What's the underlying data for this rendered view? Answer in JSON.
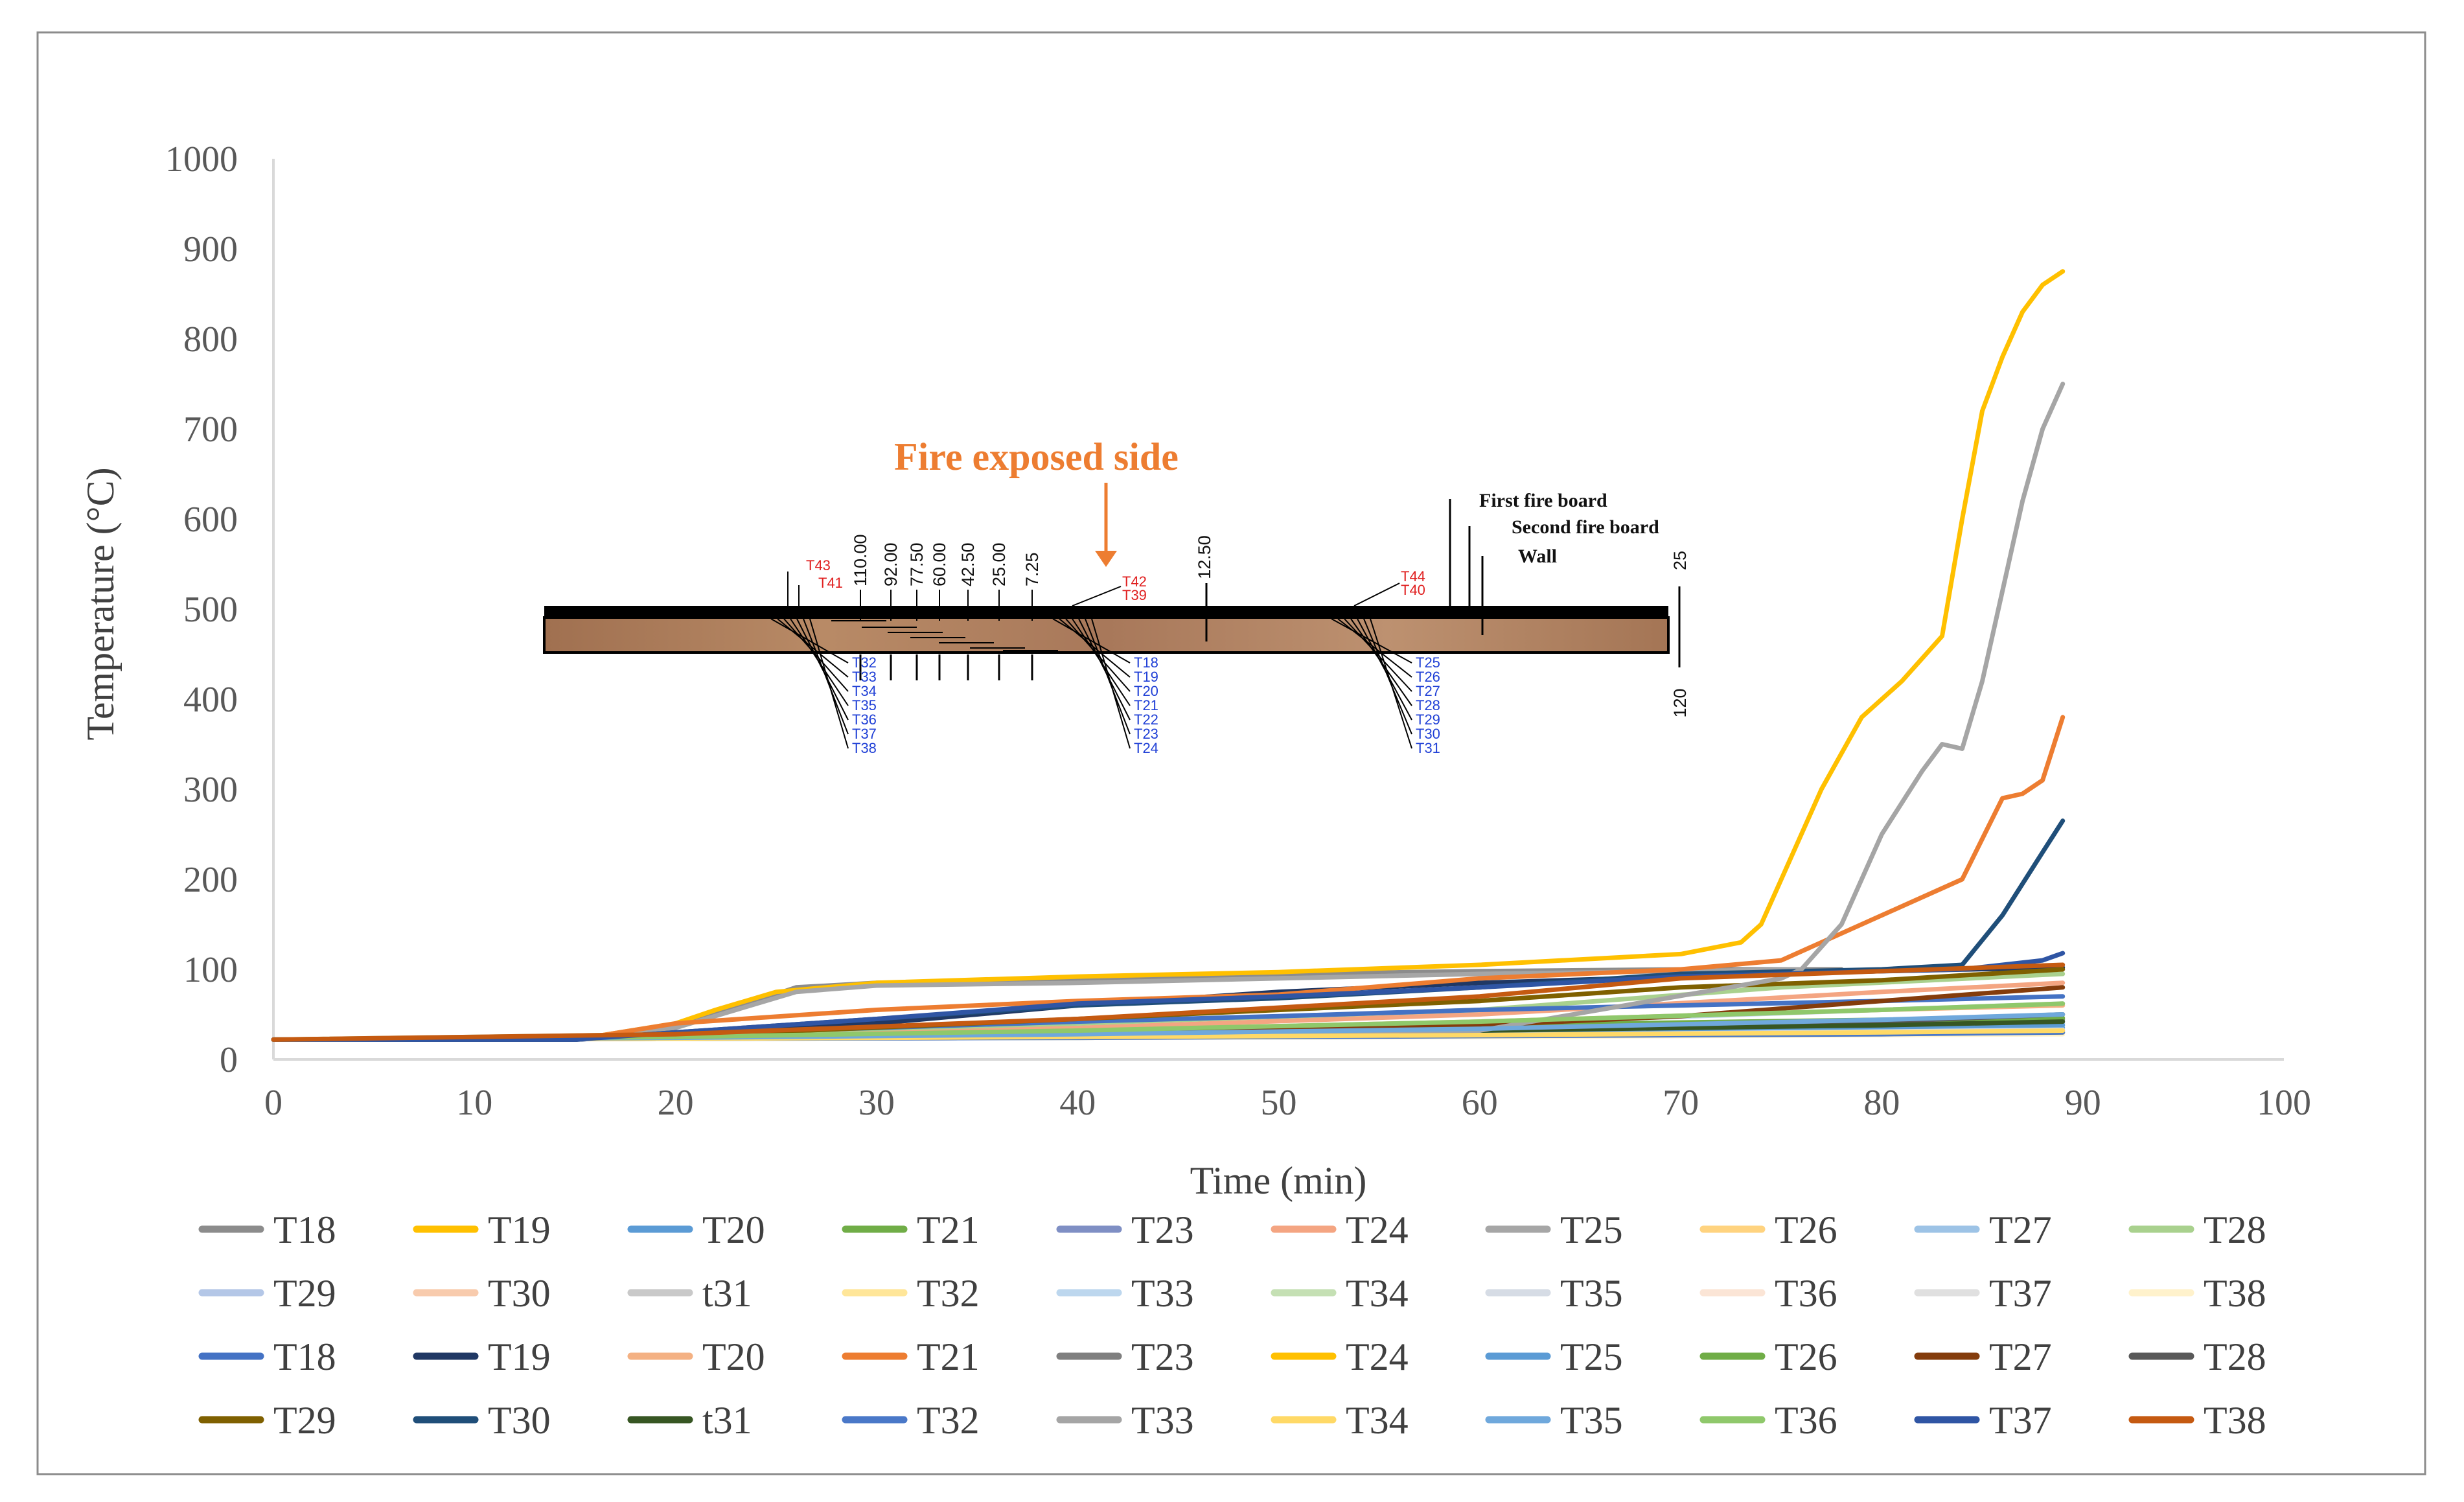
{
  "chart_data": {
    "type": "line",
    "title": "",
    "xlabel": "Time (min)",
    "ylabel": "Temperature (°C)",
    "xlim": [
      0,
      100
    ],
    "ylim": [
      0,
      1000
    ],
    "xticks": [
      0,
      10,
      20,
      30,
      40,
      50,
      60,
      70,
      80,
      90,
      100
    ],
    "yticks": [
      0,
      100,
      200,
      300,
      400,
      500,
      600,
      700,
      800,
      900,
      1000
    ],
    "grid": false,
    "legend_position": "bottom",
    "series": [
      {
        "name": "T18",
        "color": "#8c8c8c",
        "x": [
          0,
          15,
          20,
          26,
          30,
          40,
          50,
          60,
          70,
          76,
          78
        ],
        "y": [
          22,
          22,
          35,
          80,
          85,
          88,
          95,
          98,
          100,
          100,
          100
        ]
      },
      {
        "name": "T19",
        "color": "#ffc000",
        "x": [
          0,
          15,
          20,
          22,
          25,
          30,
          40,
          50,
          60,
          70,
          73,
          74,
          75,
          77,
          79,
          81,
          83,
          84,
          85,
          86,
          87,
          88,
          89
        ],
        "y": [
          22,
          22,
          40,
          55,
          75,
          85,
          92,
          97,
          105,
          117,
          130,
          150,
          200,
          300,
          380,
          420,
          470,
          600,
          720,
          780,
          830,
          860,
          875
        ]
      },
      {
        "name": "T20",
        "color": "#5b9bd5",
        "x": [
          0,
          20,
          40,
          60,
          80,
          89
        ],
        "y": [
          22,
          23,
          25,
          28,
          32,
          35
        ]
      },
      {
        "name": "T21",
        "color": "#70ad47",
        "x": [
          0,
          20,
          40,
          60,
          80,
          89
        ],
        "y": [
          22,
          25,
          32,
          38,
          44,
          46
        ]
      },
      {
        "name": "T23",
        "color": "#7f8fc4",
        "x": [
          0,
          20,
          40,
          60,
          80,
          89
        ],
        "y": [
          22,
          23,
          24,
          26,
          28,
          30
        ]
      },
      {
        "name": "T24",
        "color": "#f4a582",
        "x": [
          0,
          20,
          40,
          60,
          80,
          89
        ],
        "y": [
          22,
          26,
          35,
          50,
          75,
          85
        ]
      },
      {
        "name": "T25",
        "color": "#a6a6a6",
        "x": [
          0,
          15,
          20,
          26,
          30,
          40,
          50,
          60,
          70,
          76
        ],
        "y": [
          22,
          22,
          35,
          75,
          82,
          85,
          90,
          95,
          98,
          100
        ]
      },
      {
        "name": "T26",
        "color": "#ffd37f",
        "x": [
          0,
          20,
          40,
          60,
          80,
          89
        ],
        "y": [
          22,
          23,
          25,
          28,
          30,
          32
        ]
      },
      {
        "name": "T27",
        "color": "#9dc3e6",
        "x": [
          0,
          20,
          40,
          60,
          80,
          89
        ],
        "y": [
          22,
          24,
          28,
          33,
          38,
          40
        ]
      },
      {
        "name": "T28",
        "color": "#a9d18e",
        "x": [
          0,
          20,
          40,
          60,
          75,
          89
        ],
        "y": [
          22,
          28,
          40,
          55,
          80,
          95
        ]
      },
      {
        "name": "T29",
        "color": "#b4c7e7",
        "x": [
          0,
          20,
          40,
          60,
          80,
          89
        ],
        "y": [
          22,
          23,
          24,
          26,
          28,
          29
        ]
      },
      {
        "name": "T30",
        "color": "#f8cbad",
        "x": [
          0,
          20,
          40,
          60,
          80,
          89
        ],
        "y": [
          22,
          24,
          28,
          34,
          40,
          42
        ]
      },
      {
        "name": "t31",
        "color": "#c9c9c9",
        "x": [
          0,
          20,
          40,
          60,
          80,
          89
        ],
        "y": [
          22,
          23,
          25,
          28,
          31,
          33
        ]
      },
      {
        "name": "T32",
        "color": "#ffe699",
        "x": [
          0,
          20,
          40,
          60,
          80,
          89
        ],
        "y": [
          22,
          23,
          24,
          26,
          28,
          30
        ]
      },
      {
        "name": "T33",
        "color": "#bdd7ee",
        "x": [
          0,
          20,
          40,
          60,
          80,
          89
        ],
        "y": [
          22,
          24,
          30,
          40,
          55,
          62
        ]
      },
      {
        "name": "T34",
        "color": "#c5e0b4",
        "x": [
          0,
          20,
          40,
          60,
          80,
          89
        ],
        "y": [
          22,
          24,
          28,
          32,
          36,
          38
        ]
      },
      {
        "name": "T35",
        "color": "#d6dce5",
        "x": [
          0,
          20,
          40,
          60,
          80,
          89
        ],
        "y": [
          22,
          23,
          25,
          28,
          31,
          33
        ]
      },
      {
        "name": "T36",
        "color": "#fbe5d6",
        "x": [
          0,
          20,
          40,
          60,
          80,
          89
        ],
        "y": [
          22,
          23,
          25,
          27,
          30,
          32
        ]
      },
      {
        "name": "T37",
        "color": "#e0e0e0",
        "x": [
          0,
          20,
          40,
          60,
          80,
          89
        ],
        "y": [
          22,
          23,
          24,
          26,
          28,
          30
        ]
      },
      {
        "name": "T38",
        "color": "#fff2cc",
        "x": [
          0,
          20,
          40,
          60,
          80,
          89
        ],
        "y": [
          22,
          23,
          24,
          25,
          27,
          28
        ]
      },
      {
        "name": "T18",
        "color": "#4472c4",
        "x": [
          0,
          15,
          20,
          30,
          40,
          50,
          60,
          70,
          80,
          89
        ],
        "y": [
          22,
          22,
          28,
          35,
          42,
          48,
          55,
          60,
          65,
          70
        ]
      },
      {
        "name": "T19",
        "color": "#203864",
        "x": [
          0,
          15,
          20,
          30,
          40,
          50,
          60,
          70,
          80,
          89
        ],
        "y": [
          22,
          22,
          28,
          40,
          60,
          75,
          85,
          92,
          98,
          102
        ]
      },
      {
        "name": "T20",
        "color": "#f4b183",
        "x": [
          0,
          20,
          40,
          60,
          80,
          89
        ],
        "y": [
          22,
          25,
          32,
          42,
          55,
          60
        ]
      },
      {
        "name": "T21",
        "color": "#ed7d31",
        "x": [
          0,
          15,
          20,
          30,
          40,
          50,
          60,
          70,
          75,
          80,
          84,
          86,
          87,
          88,
          89
        ],
        "y": [
          22,
          22,
          40,
          55,
          65,
          72,
          90,
          100,
          110,
          160,
          200,
          290,
          295,
          310,
          380
        ]
      },
      {
        "name": "T23",
        "color": "#7f7f7f",
        "x": [
          0,
          20,
          40,
          60,
          80,
          89
        ],
        "y": [
          22,
          24,
          28,
          34,
          40,
          44
        ]
      },
      {
        "name": "T24",
        "color": "#ffc000",
        "x": [
          0,
          20,
          40,
          60,
          80,
          89
        ],
        "y": [
          22,
          23,
          25,
          27,
          29,
          30
        ]
      },
      {
        "name": "T25",
        "color": "#5b9bd5",
        "x": [
          0,
          20,
          40,
          60,
          80,
          89
        ],
        "y": [
          22,
          24,
          28,
          32,
          36,
          38
        ]
      },
      {
        "name": "T26",
        "color": "#70ad47",
        "x": [
          0,
          20,
          40,
          60,
          80,
          89
        ],
        "y": [
          22,
          25,
          30,
          36,
          42,
          46
        ]
      },
      {
        "name": "T27",
        "color": "#843c0c",
        "x": [
          0,
          20,
          40,
          60,
          70,
          80,
          89
        ],
        "y": [
          22,
          24,
          30,
          38,
          48,
          65,
          80
        ]
      },
      {
        "name": "T28",
        "color": "#595959",
        "x": [
          0,
          20,
          40,
          60,
          80,
          89
        ],
        "y": [
          22,
          24,
          28,
          34,
          42,
          50
        ]
      },
      {
        "name": "T29",
        "color": "#7f6000",
        "x": [
          0,
          20,
          40,
          60,
          70,
          80,
          89
        ],
        "y": [
          22,
          26,
          45,
          65,
          80,
          88,
          100
        ]
      },
      {
        "name": "T30",
        "color": "#1f4e79",
        "x": [
          0,
          15,
          20,
          30,
          40,
          50,
          60,
          70,
          80,
          84,
          86,
          88,
          89
        ],
        "y": [
          22,
          22,
          30,
          45,
          60,
          68,
          80,
          95,
          100,
          105,
          160,
          230,
          265
        ]
      },
      {
        "name": "t31",
        "color": "#375623",
        "x": [
          0,
          20,
          40,
          60,
          80,
          89
        ],
        "y": [
          22,
          24,
          28,
          32,
          38,
          42
        ]
      },
      {
        "name": "T32",
        "color": "#4a78c8",
        "x": [
          0,
          20,
          40,
          60,
          80,
          89
        ],
        "y": [
          22,
          23,
          24,
          26,
          28,
          30
        ]
      },
      {
        "name": "T33",
        "color": "#a5a5a5",
        "x": [
          0,
          20,
          40,
          60,
          75,
          76,
          78,
          80,
          82,
          83,
          84,
          85,
          86,
          87,
          88,
          89
        ],
        "y": [
          22,
          24,
          28,
          32,
          90,
          100,
          150,
          250,
          320,
          350,
          345,
          420,
          520,
          620,
          700,
          750
        ]
      },
      {
        "name": "T34",
        "color": "#ffd966",
        "x": [
          0,
          20,
          40,
          60,
          80,
          89
        ],
        "y": [
          22,
          23,
          25,
          27,
          30,
          32
        ]
      },
      {
        "name": "T35",
        "color": "#6fa8dc",
        "x": [
          0,
          20,
          40,
          60,
          80,
          89
        ],
        "y": [
          22,
          24,
          28,
          34,
          44,
          50
        ]
      },
      {
        "name": "T36",
        "color": "#8fc86b",
        "x": [
          0,
          20,
          40,
          60,
          80,
          89
        ],
        "y": [
          22,
          25,
          32,
          42,
          55,
          62
        ]
      },
      {
        "name": "T37",
        "color": "#2f55a4",
        "x": [
          0,
          15,
          20,
          30,
          40,
          50,
          60,
          70,
          80,
          84,
          88,
          89
        ],
        "y": [
          22,
          22,
          30,
          45,
          62,
          70,
          80,
          92,
          98,
          100,
          110,
          118
        ]
      },
      {
        "name": "T38",
        "color": "#c55a11",
        "x": [
          0,
          20,
          40,
          60,
          70,
          80,
          89
        ],
        "y": [
          22,
          28,
          45,
          70,
          90,
          98,
          105
        ]
      }
    ]
  },
  "inset": {
    "heading": "Fire exposed side",
    "labels": {
      "first_board": "First fire board",
      "second_board": "Second fire board",
      "wall": "Wall"
    },
    "depths": [
      "110.00",
      "92.00",
      "77.50",
      "60.00",
      "42.50",
      "25.00",
      "7.25"
    ],
    "dim_top": "12.50",
    "dim_right_top": "25",
    "dim_right_bottom": "120",
    "red_tags": [
      "T43",
      "T41",
      "T42",
      "T39",
      "T44",
      "T40"
    ],
    "group_left": [
      "T32",
      "T33",
      "T34",
      "T35",
      "T36",
      "T37",
      "T38"
    ],
    "group_mid": [
      "T18",
      "T19",
      "T20",
      "T21",
      "T22",
      "T23",
      "T24"
    ],
    "group_right": [
      "T25",
      "T26",
      "T27",
      "T28",
      "T29",
      "T30",
      "T31"
    ]
  }
}
